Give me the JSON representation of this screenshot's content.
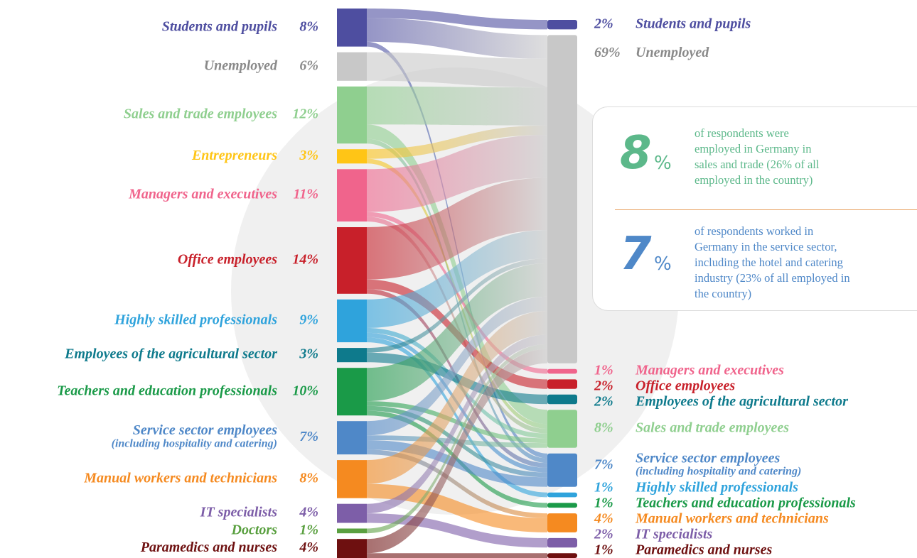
{
  "chart_data": {
    "type": "sankey",
    "left_nodes": [
      {
        "name": "Students and pupils",
        "value": 8,
        "label": "8%",
        "color": "#4e4ea0"
      },
      {
        "name": "Unemployed",
        "value": 6,
        "label": "6%",
        "color": "#c8c8c8"
      },
      {
        "name": "Sales and trade employees",
        "value": 12,
        "label": "12%",
        "color": "#8fcf8f"
      },
      {
        "name": "Entrepreneurs",
        "value": 3,
        "label": "3%",
        "color": "#ffc516"
      },
      {
        "name": "Managers and executives",
        "value": 11,
        "label": "11%",
        "color": "#f0648c"
      },
      {
        "name": "Office employees",
        "value": 14,
        "label": "14%",
        "color": "#c8202a"
      },
      {
        "name": "Highly skilled professionals",
        "value": 9,
        "label": "9%",
        "color": "#2fa3dc"
      },
      {
        "name": "Employees of the agricultural sector",
        "value": 3,
        "label": "3%",
        "color": "#0e7a8c"
      },
      {
        "name": "Teachers and education professionals",
        "value": 10,
        "label": "10%",
        "color": "#1a9a48"
      },
      {
        "name": "Service sector employees",
        "note": "(including hospitality and catering)",
        "value": 7,
        "label": "7%",
        "color": "#4f88c8"
      },
      {
        "name": "Manual workers and technicians",
        "value": 8,
        "label": "8%",
        "color": "#f58a20"
      },
      {
        "name": "IT specialists",
        "value": 4,
        "label": "4%",
        "color": "#7d5ea8"
      },
      {
        "name": "Doctors",
        "value": 1,
        "label": "1%",
        "color": "#5aa040"
      },
      {
        "name": "Paramedics and nurses",
        "value": 4,
        "label": "4%",
        "color": "#6e1010"
      }
    ],
    "right_nodes": [
      {
        "name": "Students and pupils",
        "value": 2,
        "label": "2%",
        "color": "#4e4ea0"
      },
      {
        "name": "Unemployed",
        "value": 69,
        "label": "69%",
        "color": "#c8c8c8"
      },
      {
        "name": "Managers and executives",
        "value": 1,
        "label": "1%",
        "color": "#f0648c"
      },
      {
        "name": "Office employees",
        "value": 2,
        "label": "2%",
        "color": "#c8202a"
      },
      {
        "name": "Employees of the agricultural sector",
        "value": 2,
        "label": "2%",
        "color": "#0e7a8c"
      },
      {
        "name": "Sales and trade employees",
        "value": 8,
        "label": "8%",
        "color": "#8fcf8f"
      },
      {
        "name": "Service sector employees",
        "note": "(including hospitality and catering)",
        "value": 7,
        "label": "7%",
        "color": "#4f88c8"
      },
      {
        "name": "Highly skilled professionals",
        "value": 1,
        "label": "1%",
        "color": "#2fa3dc"
      },
      {
        "name": "Teachers and education professionals",
        "value": 1,
        "label": "1%",
        "color": "#1a9a48"
      },
      {
        "name": "Manual workers and technicians",
        "value": 4,
        "label": "4%",
        "color": "#f58a20"
      },
      {
        "name": "IT specialists",
        "value": 2,
        "label": "2%",
        "color": "#7d5ea8"
      },
      {
        "name": "Paramedics and nurses",
        "value": 1,
        "label": "1%",
        "color": "#6e1010"
      }
    ],
    "flows": [
      {
        "source": 0,
        "target": 0,
        "value": 2
      },
      {
        "source": 0,
        "target": 1,
        "value": 5
      },
      {
        "source": 0,
        "target": 6,
        "value": 1
      },
      {
        "source": 1,
        "target": 1,
        "value": 6
      },
      {
        "source": 2,
        "target": 1,
        "value": 8
      },
      {
        "source": 2,
        "target": 5,
        "value": 3
      },
      {
        "source": 2,
        "target": 6,
        "value": 1
      },
      {
        "source": 3,
        "target": 1,
        "value": 2
      },
      {
        "source": 3,
        "target": 5,
        "value": 1
      },
      {
        "source": 4,
        "target": 1,
        "value": 9
      },
      {
        "source": 4,
        "target": 2,
        "value": 1
      },
      {
        "source": 4,
        "target": 5,
        "value": 1
      },
      {
        "source": 5,
        "target": 1,
        "value": 11
      },
      {
        "source": 5,
        "target": 3,
        "value": 2
      },
      {
        "source": 5,
        "target": 6,
        "value": 1
      },
      {
        "source": 6,
        "target": 1,
        "value": 6
      },
      {
        "source": 6,
        "target": 5,
        "value": 1
      },
      {
        "source": 6,
        "target": 6,
        "value": 1
      },
      {
        "source": 6,
        "target": 7,
        "value": 1
      },
      {
        "source": 7,
        "target": 1,
        "value": 1
      },
      {
        "source": 7,
        "target": 4,
        "value": 2
      },
      {
        "source": 8,
        "target": 1,
        "value": 7
      },
      {
        "source": 8,
        "target": 5,
        "value": 1
      },
      {
        "source": 8,
        "target": 6,
        "value": 1
      },
      {
        "source": 8,
        "target": 8,
        "value": 1
      },
      {
        "source": 9,
        "target": 1,
        "value": 3
      },
      {
        "source": 9,
        "target": 5,
        "value": 1
      },
      {
        "source": 9,
        "target": 6,
        "value": 2
      },
      {
        "source": 9,
        "target": 9,
        "value": 1
      },
      {
        "source": 10,
        "target": 1,
        "value": 5
      },
      {
        "source": 10,
        "target": 9,
        "value": 3
      },
      {
        "source": 11,
        "target": 1,
        "value": 2
      },
      {
        "source": 11,
        "target": 10,
        "value": 2
      },
      {
        "source": 12,
        "target": 1,
        "value": 1
      },
      {
        "source": 13,
        "target": 1,
        "value": 3
      },
      {
        "source": 13,
        "target": 11,
        "value": 1
      }
    ]
  },
  "callouts": [
    {
      "number": "8",
      "unit": "%",
      "color": "#5cb88a",
      "lines": [
        "of respondents were",
        "employed in Germany in",
        "sales and trade (26% of all",
        "employed in the country)"
      ]
    },
    {
      "number": "7",
      "unit": "%",
      "color": "#4f88c8",
      "lines": [
        "of respondents worked in",
        "Germany in the service sector,",
        "including the hotel and catering",
        "industry (23% of all employed in",
        "the country)"
      ]
    }
  ]
}
